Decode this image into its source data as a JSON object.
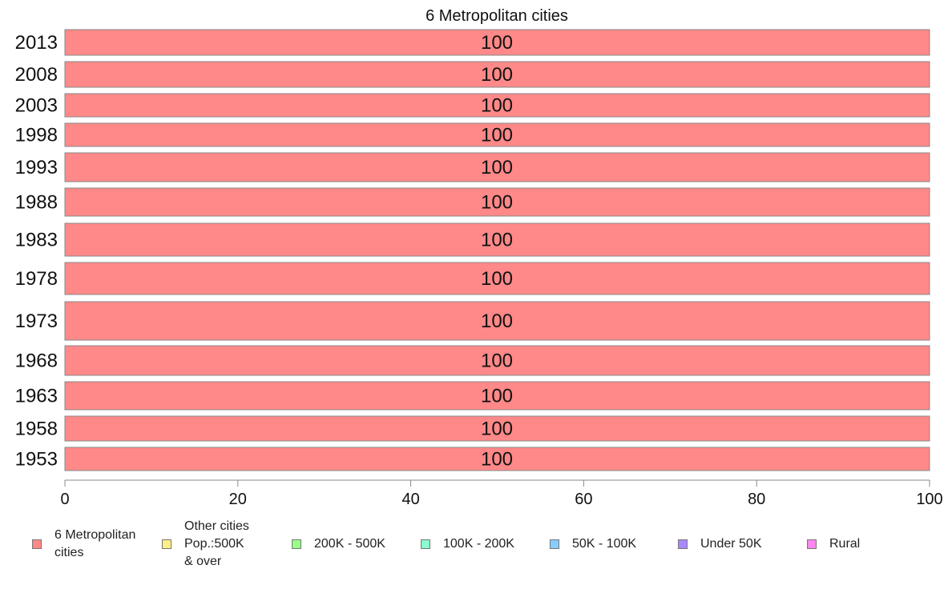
{
  "chart_data": {
    "type": "bar",
    "orientation": "horizontal",
    "stacked": true,
    "title": "6 Metropolitan cities",
    "categories": [
      "2013",
      "2008",
      "2003",
      "1998",
      "1993",
      "1988",
      "1983",
      "1978",
      "1973",
      "1968",
      "1963",
      "1958",
      "1953"
    ],
    "series": [
      {
        "name": "6 Metropolitan\n cities",
        "color": "#ff8888",
        "values": [
          100,
          100,
          100,
          100,
          100,
          100,
          100,
          100,
          100,
          100,
          100,
          100,
          100
        ]
      },
      {
        "name": "Other cities\nPop.:500K\n & over",
        "color": "#ffee88",
        "values": [
          0,
          0,
          0,
          0,
          0,
          0,
          0,
          0,
          0,
          0,
          0,
          0,
          0
        ]
      },
      {
        "name": "200K - 500K",
        "color": "#99ff88",
        "values": [
          0,
          0,
          0,
          0,
          0,
          0,
          0,
          0,
          0,
          0,
          0,
          0,
          0
        ]
      },
      {
        "name": "100K - 200K",
        "color": "#88ffcc",
        "values": [
          0,
          0,
          0,
          0,
          0,
          0,
          0,
          0,
          0,
          0,
          0,
          0,
          0
        ]
      },
      {
        "name": "50K - 100K",
        "color": "#88ccff",
        "values": [
          0,
          0,
          0,
          0,
          0,
          0,
          0,
          0,
          0,
          0,
          0,
          0,
          0
        ]
      },
      {
        "name": "Under 50K",
        "color": "#aa88ff",
        "values": [
          0,
          0,
          0,
          0,
          0,
          0,
          0,
          0,
          0,
          0,
          0,
          0,
          0
        ]
      },
      {
        "name": "Rural",
        "color": "#ff88ee",
        "values": [
          0,
          0,
          0,
          0,
          0,
          0,
          0,
          0,
          0,
          0,
          0,
          0,
          0
        ]
      }
    ],
    "data_labels": [
      "100",
      "100",
      "100",
      "100",
      "100",
      "100",
      "100",
      "100",
      "100",
      "100",
      "100",
      "100",
      "100"
    ],
    "xlim": [
      0,
      100
    ],
    "xticks": [
      "0",
      "20",
      "40",
      "60",
      "80",
      "100"
    ],
    "grid": false,
    "legend_position": "bottom"
  }
}
